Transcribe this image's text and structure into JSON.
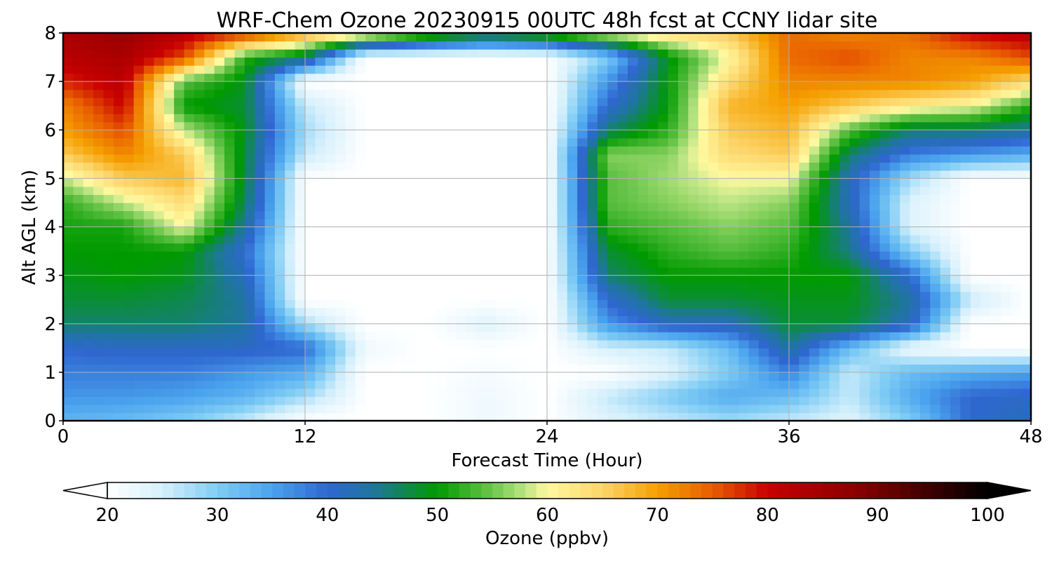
{
  "chart_data": {
    "type": "heatmap",
    "title": "WRF-Chem Ozone  20230915 00UTC 48h fcst at CCNY lidar site",
    "xlabel": "Forecast Time (Hour)",
    "ylabel": "Alt AGL (km)",
    "xlim": [
      0,
      48
    ],
    "ylim": [
      0,
      8
    ],
    "xticks": [
      0,
      12,
      24,
      36,
      48
    ],
    "yticks": [
      0,
      1,
      2,
      3,
      4,
      5,
      6,
      7,
      8
    ],
    "grid": true,
    "x": [
      0,
      3,
      6,
      9,
      12,
      15,
      18,
      21,
      24,
      27,
      30,
      33,
      36,
      39,
      42,
      45,
      48
    ],
    "y": [
      0,
      0.5,
      1,
      1.5,
      2,
      2.5,
      3,
      3.5,
      4,
      4.5,
      5,
      5.5,
      6,
      6.5,
      7,
      7.5,
      8
    ],
    "z": [
      [
        33,
        32,
        30,
        26,
        20,
        20,
        20,
        22,
        20,
        24,
        26,
        28,
        26,
        24,
        30,
        40,
        42
      ],
      [
        36,
        36,
        35,
        33,
        28,
        20,
        20,
        22,
        20,
        26,
        30,
        34,
        32,
        26,
        34,
        40,
        41
      ],
      [
        38,
        38,
        38,
        36,
        34,
        20,
        20,
        21,
        20,
        20,
        24,
        30,
        38,
        26,
        32,
        34,
        35
      ],
      [
        40,
        41,
        41,
        41,
        40,
        22,
        20,
        20,
        20,
        25,
        26,
        32,
        44,
        32,
        22,
        20,
        20
      ],
      [
        46,
        46,
        46,
        44,
        28,
        20,
        20,
        24,
        20,
        36,
        42,
        42,
        48,
        48,
        42,
        20,
        20
      ],
      [
        48,
        48,
        47,
        44,
        20,
        20,
        20,
        20,
        20,
        40,
        48,
        48,
        49,
        49,
        44,
        26,
        20
      ],
      [
        49,
        50,
        49,
        42,
        20,
        20,
        20,
        20,
        20,
        46,
        50,
        50,
        50,
        50,
        40,
        20,
        20
      ],
      [
        50,
        50,
        50,
        40,
        20,
        20,
        20,
        20,
        20,
        48,
        52,
        54,
        52,
        45,
        30,
        20,
        20
      ],
      [
        51,
        51,
        60,
        44,
        20,
        20,
        20,
        20,
        20,
        52,
        54,
        56,
        54,
        44,
        24,
        20,
        20
      ],
      [
        52,
        58,
        64,
        47,
        20,
        20,
        20,
        20,
        20,
        54,
        56,
        58,
        56,
        42,
        24,
        20,
        20
      ],
      [
        58,
        66,
        68,
        48,
        20,
        20,
        20,
        20,
        20,
        54,
        57,
        60,
        60,
        42,
        28,
        20,
        20
      ],
      [
        66,
        72,
        66,
        48,
        26,
        20,
        20,
        20,
        20,
        56,
        56,
        64,
        66,
        46,
        38,
        36,
        34
      ],
      [
        70,
        76,
        58,
        49,
        28,
        20,
        20,
        20,
        20,
        46,
        52,
        66,
        68,
        54,
        46,
        46,
        44
      ],
      [
        72,
        80,
        50,
        48,
        26,
        20,
        20,
        20,
        20,
        40,
        50,
        68,
        70,
        66,
        62,
        60,
        52
      ],
      [
        78,
        82,
        54,
        49,
        20,
        20,
        20,
        20,
        20,
        36,
        50,
        64,
        72,
        72,
        72,
        70,
        64
      ],
      [
        82,
        84,
        76,
        52,
        46,
        20,
        20,
        20,
        20,
        30,
        49,
        60,
        74,
        76,
        72,
        72,
        76
      ],
      [
        84,
        86,
        82,
        78,
        70,
        64,
        56,
        50,
        54,
        60,
        64,
        66,
        74,
        72,
        74,
        80,
        82
      ]
    ],
    "colorbar": {
      "label": "Ozone  (ppbv)",
      "min": 20,
      "max": 100,
      "ticks": [
        20,
        30,
        40,
        50,
        60,
        70,
        80,
        90,
        100
      ],
      "extend": "both",
      "stops": [
        {
          "v": 20,
          "c": "#ffffff"
        },
        {
          "v": 25,
          "c": "#d6f0fc"
        },
        {
          "v": 30,
          "c": "#7fccf4"
        },
        {
          "v": 35,
          "c": "#4aa3ee"
        },
        {
          "v": 40,
          "c": "#2f67d0"
        },
        {
          "v": 44,
          "c": "#1f75a0"
        },
        {
          "v": 50,
          "c": "#009a00"
        },
        {
          "v": 55,
          "c": "#6cc64c"
        },
        {
          "v": 58,
          "c": "#bde585"
        },
        {
          "v": 60,
          "c": "#fff9a0"
        },
        {
          "v": 65,
          "c": "#fcd56a"
        },
        {
          "v": 70,
          "c": "#f5a000"
        },
        {
          "v": 75,
          "c": "#e85d00"
        },
        {
          "v": 80,
          "c": "#c80000"
        },
        {
          "v": 88,
          "c": "#8b0000"
        },
        {
          "v": 95,
          "c": "#3a0000"
        },
        {
          "v": 100,
          "c": "#000000"
        }
      ]
    }
  }
}
